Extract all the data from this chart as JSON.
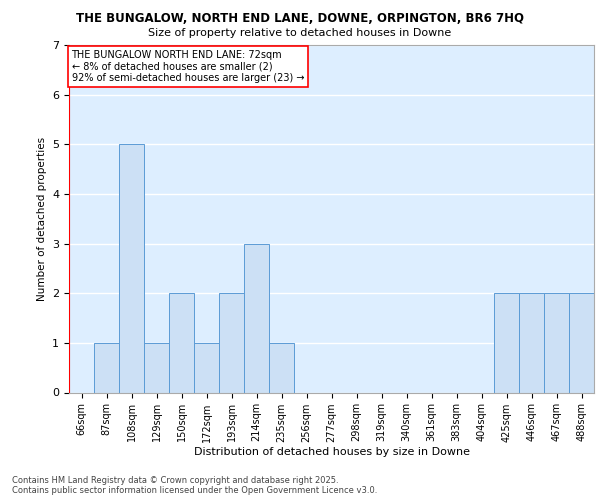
{
  "title1": "THE BUNGALOW, NORTH END LANE, DOWNE, ORPINGTON, BR6 7HQ",
  "title2": "Size of property relative to detached houses in Downe",
  "xlabel": "Distribution of detached houses by size in Downe",
  "ylabel": "Number of detached properties",
  "categories": [
    "66sqm",
    "87sqm",
    "108sqm",
    "129sqm",
    "150sqm",
    "172sqm",
    "193sqm",
    "214sqm",
    "235sqm",
    "256sqm",
    "277sqm",
    "298sqm",
    "319sqm",
    "340sqm",
    "361sqm",
    "383sqm",
    "404sqm",
    "425sqm",
    "446sqm",
    "467sqm",
    "488sqm"
  ],
  "values": [
    0,
    1,
    5,
    1,
    2,
    1,
    2,
    3,
    1,
    0,
    0,
    0,
    0,
    0,
    0,
    0,
    0,
    2,
    2,
    2,
    2
  ],
  "bar_color": "#cce0f5",
  "bar_edge_color": "#5b9bd5",
  "highlight_color": "#ff0000",
  "ylim": [
    0,
    7
  ],
  "yticks": [
    0,
    1,
    2,
    3,
    4,
    5,
    6,
    7
  ],
  "annotation_text": "THE BUNGALOW NORTH END LANE: 72sqm\n← 8% of detached houses are smaller (2)\n92% of semi-detached houses are larger (23) →",
  "annotation_box_color": "#ffffff",
  "annotation_box_edge": "#ff0000",
  "vline_color": "#ff0000",
  "footer": "Contains HM Land Registry data © Crown copyright and database right 2025.\nContains public sector information licensed under the Open Government Licence v3.0.",
  "bg_color": "#ddeeff",
  "fig_bg_color": "#ffffff",
  "grid_color": "#ffffff"
}
